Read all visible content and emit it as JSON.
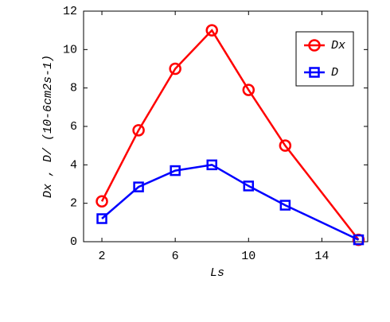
{
  "chart_data": {
    "type": "line",
    "x_label": "Ls",
    "y_label": "Dx ,  D/ (10-6cm2s-1)",
    "x": [
      2,
      4,
      6,
      8,
      10,
      12,
      16
    ],
    "series": [
      {
        "name": "Dx",
        "color": "#ff0000",
        "marker": "circle",
        "values": [
          2.1,
          5.8,
          9.0,
          11.0,
          7.9,
          5.0,
          0.1
        ]
      },
      {
        "name": "D",
        "color": "#0000ff",
        "marker": "square",
        "values": [
          1.2,
          2.85,
          3.7,
          4.0,
          2.9,
          1.9,
          0.1
        ]
      }
    ],
    "xlim": [
      1,
      16.5
    ],
    "xticks": [
      2,
      6,
      10,
      14
    ],
    "ylim": [
      0,
      12
    ],
    "yticks": [
      0,
      2,
      4,
      6,
      8,
      10,
      12
    ],
    "grid": false,
    "legend": "upper right"
  }
}
